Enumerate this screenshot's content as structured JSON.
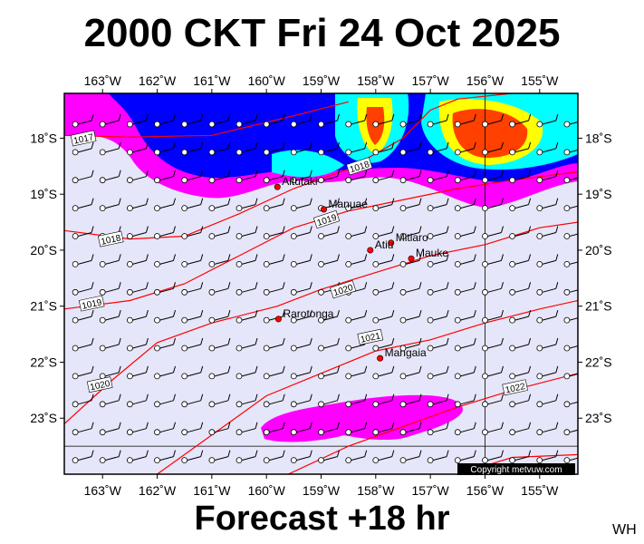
{
  "header": {
    "title": "2000 CKT Fri 24 Oct 2025"
  },
  "footer": {
    "forecast": "Forecast +18 hr",
    "initials": "WH"
  },
  "copyright": "Copyright metvuw.com",
  "colors": {
    "ocean": "#e6e6fa",
    "isobar": "#ff0000",
    "island": "#ff0000",
    "wind_barb": "#000000",
    "rain_light": "#ff00ff",
    "rain_medium": "#0000ff",
    "rain_heavy": "#00ffff",
    "rain_very_heavy": "#ffff00",
    "rain_extreme": "#ff4000"
  },
  "map": {
    "lon_range": [
      -163.7,
      -154.3
    ],
    "lat_range": [
      -24.0,
      -17.2
    ],
    "x_ticks": [
      {
        "lon": -163,
        "label": "163˚W"
      },
      {
        "lon": -162,
        "label": "162˚W"
      },
      {
        "lon": -161,
        "label": "161˚W"
      },
      {
        "lon": -160,
        "label": "160˚W"
      },
      {
        "lon": -159,
        "label": "159˚W"
      },
      {
        "lon": -158,
        "label": "158˚W"
      },
      {
        "lon": -157,
        "label": "157˚W"
      },
      {
        "lon": -156,
        "label": "156˚W"
      },
      {
        "lon": -155,
        "label": "155˚W"
      }
    ],
    "y_ticks": [
      {
        "lat": -18,
        "label": "18˚S"
      },
      {
        "lat": -19,
        "label": "19˚S"
      },
      {
        "lat": -20,
        "label": "20˚S"
      },
      {
        "lat": -21,
        "label": "21˚S"
      },
      {
        "lat": -22,
        "label": "22˚S"
      },
      {
        "lat": -23,
        "label": "23˚S"
      }
    ],
    "islands": [
      {
        "name": "Aitutaki",
        "lon": -159.8,
        "lat": -18.87
      },
      {
        "name": "Manuae",
        "lon": -158.95,
        "lat": -19.27
      },
      {
        "name": "Mitiaro",
        "lon": -157.72,
        "lat": -19.87
      },
      {
        "name": "Atiu",
        "lon": -158.1,
        "lat": -20.0
      },
      {
        "name": "Mauke",
        "lon": -157.35,
        "lat": -20.15
      },
      {
        "name": "Rarotonga",
        "lon": -159.78,
        "lat": -21.23
      },
      {
        "name": "Mangaia",
        "lon": -157.92,
        "lat": -21.93
      }
    ],
    "isobars": [
      {
        "label": "1017",
        "points": [
          [
            -163.7,
            -17.95
          ],
          [
            -162.5,
            -17.98
          ],
          [
            -161,
            -17.95
          ],
          [
            -159.5,
            -17.6
          ],
          [
            -158.5,
            -17.35
          ]
        ],
        "label_at": [
          -163.35,
          -18.0
        ]
      },
      {
        "label": "1018",
        "points": [
          [
            -163.7,
            -19.65
          ],
          [
            -162.5,
            -19.8
          ],
          [
            -161.5,
            -19.75
          ],
          [
            -160.5,
            -19.35
          ],
          [
            -159.5,
            -18.9
          ],
          [
            -158.5,
            -18.55
          ],
          [
            -157.5,
            -18.0
          ],
          [
            -157,
            -17.5
          ],
          [
            -156.5,
            -17.3
          ],
          [
            -155.5,
            -17.2
          ]
        ],
        "label_at": [
          -162.85,
          -19.8
        ]
      },
      {
        "label": "1019",
        "points": [
          [
            -163.7,
            -21.05
          ],
          [
            -162.5,
            -20.9
          ],
          [
            -161.5,
            -20.6
          ],
          [
            -160.5,
            -20.1
          ],
          [
            -159.5,
            -19.6
          ],
          [
            -158.5,
            -19.3
          ],
          [
            -157.5,
            -19.1
          ],
          [
            -156.5,
            -18.9
          ],
          [
            -155.5,
            -18.75
          ],
          [
            -154.3,
            -18.6
          ]
        ],
        "label_at": [
          -163.2,
          -20.95
        ]
      },
      {
        "label": "1020",
        "points": [
          [
            -163.7,
            -23.1
          ],
          [
            -162.8,
            -22.3
          ],
          [
            -162,
            -21.65
          ],
          [
            -161,
            -21.3
          ],
          [
            -159.8,
            -21.0
          ],
          [
            -159,
            -20.7
          ],
          [
            -158,
            -20.4
          ],
          [
            -157,
            -20.1
          ],
          [
            -156,
            -19.9
          ],
          [
            -155,
            -19.6
          ],
          [
            -154.3,
            -19.5
          ]
        ],
        "label_at": [
          -163.05,
          -22.4
        ]
      },
      {
        "label": "1021",
        "points": [
          [
            -162,
            -24.0
          ],
          [
            -161,
            -23.3
          ],
          [
            -160,
            -22.6
          ],
          [
            -159,
            -22.2
          ],
          [
            -158,
            -21.8
          ],
          [
            -157,
            -21.6
          ],
          [
            -156,
            -21.3
          ],
          [
            -155,
            -21.05
          ],
          [
            -154.3,
            -20.9
          ]
        ],
        "label_at": [
          -158.1,
          -21.55
        ]
      },
      {
        "label": "1022",
        "points": [
          [
            -159.6,
            -24.0
          ],
          [
            -158.5,
            -23.5
          ],
          [
            -157.5,
            -23.15
          ],
          [
            -156.5,
            -22.8
          ],
          [
            -155.5,
            -22.5
          ],
          [
            -154.3,
            -22.2
          ]
        ],
        "label_at": [
          -155.45,
          -22.45
        ]
      },
      {
        "label": "",
        "points": [
          [
            -156.5,
            -24.0
          ],
          [
            -155.5,
            -23.7
          ],
          [
            -154.3,
            -23.65
          ]
        ],
        "label_at": null
      }
    ],
    "isobar_labels_extra": [
      {
        "label": "1018",
        "lon": -158.3,
        "lat": -18.5
      },
      {
        "label": "1019",
        "lon": -158.9,
        "lat": -19.45
      },
      {
        "label": "1020",
        "lon": -158.6,
        "lat": -20.7
      }
    ]
  }
}
